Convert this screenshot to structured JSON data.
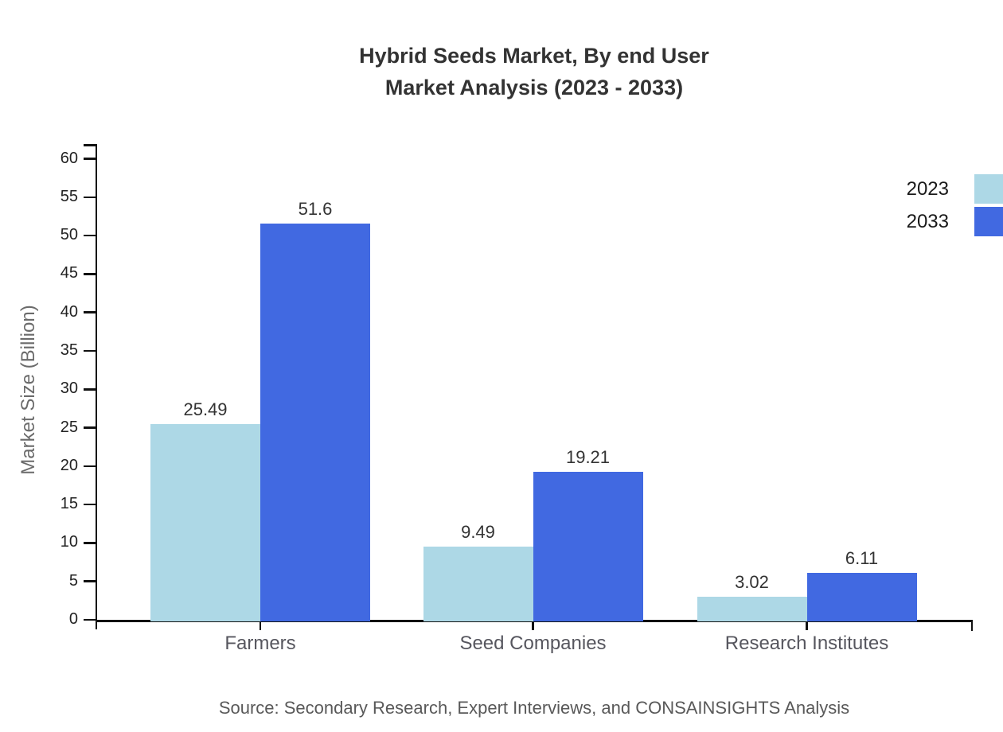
{
  "chart_data": {
    "type": "bar",
    "title": "Hybrid Seeds Market, By end User Market Analysis (2023 - 2033)",
    "title_lines": [
      "Hybrid Seeds Market, By end User",
      "Market Analysis (2023 - 2033)"
    ],
    "categories": [
      "Farmers",
      "Seed Companies",
      "Research Institutes"
    ],
    "series": [
      {
        "name": "2023",
        "color": "#ADD8E6",
        "values": [
          25.49,
          9.49,
          3.02
        ]
      },
      {
        "name": "2033",
        "color": "#4169E1",
        "values": [
          51.6,
          19.21,
          6.11
        ]
      }
    ],
    "xlabel": "",
    "ylabel": "Market Size (Billion)",
    "ylim": [
      0,
      60
    ],
    "ytick_step": 5,
    "grid": false,
    "legend_position": "top-right-edge",
    "source": "Source: Secondary Research, Expert Interviews, and CONSAINSIGHTS Analysis"
  },
  "colors": {
    "background": "#ffffff",
    "axis": "#111111",
    "title_text": "#333333",
    "tick_text": "#222222",
    "category_text": "#56565e",
    "axis_label_text": "#6b6b6b",
    "source_text": "#595959",
    "series_2023": "#ADD8E6",
    "series_2033": "#4169E1"
  }
}
